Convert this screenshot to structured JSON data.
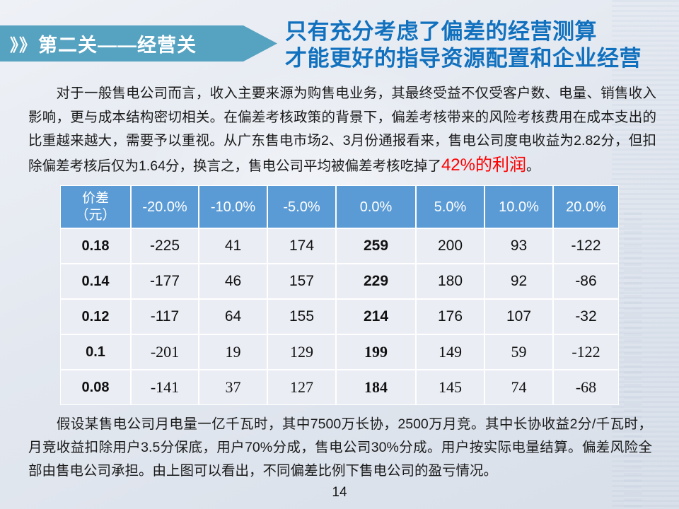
{
  "banner": {
    "chevrons": "》》",
    "label": "第二关——经营关"
  },
  "title": {
    "line1": "只有充分考虑了偏差的经营测算",
    "line2": "才能更好的指导资源配置和企业经营"
  },
  "intro": {
    "text_before": "　　对于一般售电公司而言，收入主要来源为购售电业务，其最终受益不仅受客户数、电量、销售收入影响，更与成本结构密切相关。在偏差考核政策的背景下，偏差考核带来的风险考核费用在成本支出的比重越来越大，需要予以重视。从广东售电市场2、3月份通报看来，售电公司度电收益为2.82分，但扣除偏差考核后仅为1.64分，换言之，售电公司平均被偏差考核吃掉了",
    "highlight": "42%的利润",
    "text_after": "。"
  },
  "table": {
    "corner": {
      "line1": "价差",
      "line2": "（元）"
    },
    "col_headers": [
      "-20.0%",
      "-10.0%",
      "-5.0%",
      "0.0%",
      "5.0%",
      "10.0%",
      "20.0%"
    ],
    "bold_col_index": 3,
    "rows": [
      {
        "label": "0.18",
        "values": [
          "-225",
          "41",
          "174",
          "259",
          "200",
          "93",
          "-122"
        ],
        "serif": false
      },
      {
        "label": "0.14",
        "values": [
          "-177",
          "46",
          "157",
          "229",
          "180",
          "92",
          "-86"
        ],
        "serif": false
      },
      {
        "label": "0.12",
        "values": [
          "-117",
          "64",
          "155",
          "214",
          "176",
          "107",
          "-32"
        ],
        "serif": false
      },
      {
        "label": "0.1",
        "values": [
          "-201",
          "19",
          "129",
          "199",
          "149",
          "59",
          "-122"
        ],
        "serif": true
      },
      {
        "label": "0.08",
        "values": [
          "-141",
          "37",
          "127",
          "184",
          "145",
          "74",
          "-68"
        ],
        "serif": true
      }
    ]
  },
  "note": {
    "text": "　　假设某售电公司月电量一亿千瓦时，其中7500万长协，2500万月竞。其中长协收益2分/千瓦时，月竞收益扣除用户3.5分保底，用户70%分成，售电公司30%分成。用户按实际电量结算。偏差风险全部由售电公司承担。由上图可以看出，不同偏差比例下售电公司的盈亏情况。"
  },
  "page_number": "14",
  "colors": {
    "banner_teal": "#56A2C1",
    "title_blue": "#1171BE",
    "table_header_blue": "#5B9BD5",
    "table_row_bg": "#EAEDF4",
    "highlight_red": "#FE0000"
  }
}
